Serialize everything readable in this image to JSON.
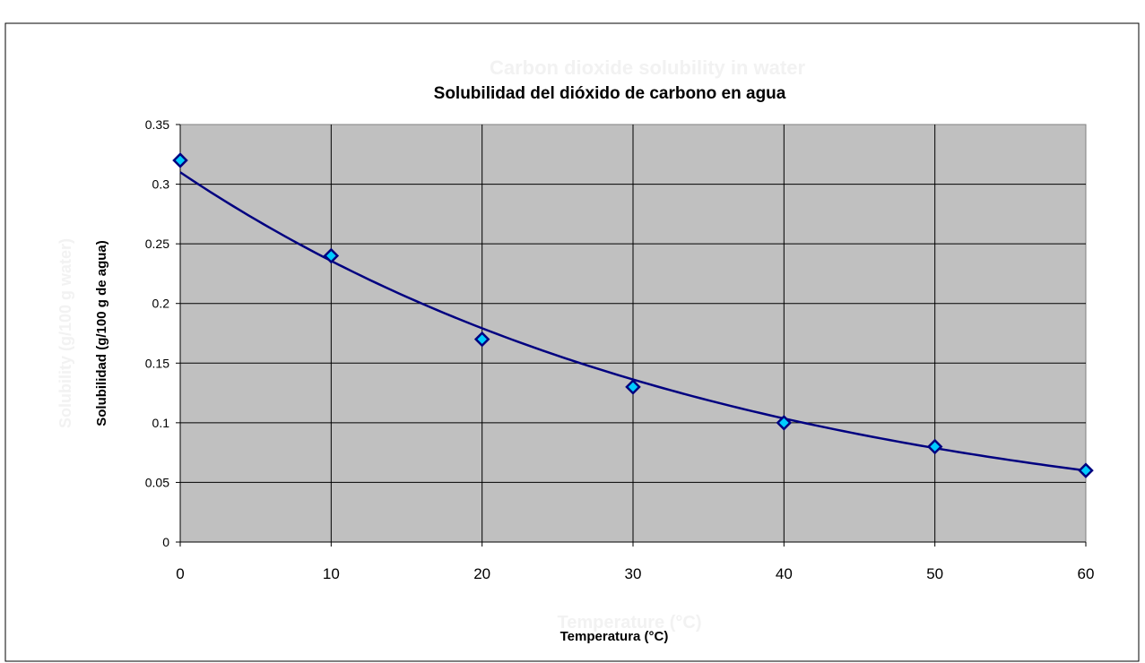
{
  "chart_data": {
    "type": "scatter",
    "title": "Solubilidad del dióxido de carbono en agua",
    "faded_title": "Carbon dioxide solubility in water",
    "xlabel": "Temperatura (°C)",
    "faded_xlabel": "Temperature (°C)",
    "ylabel": "Solubilidad (g/100 g de agua)",
    "faded_ylabel": "Solubility (g/100 g water)",
    "xlim": [
      0,
      60
    ],
    "ylim": [
      0,
      0.35
    ],
    "x_ticks": [
      "0",
      "10",
      "20",
      "30",
      "40",
      "50",
      "60"
    ],
    "y_ticks": [
      "0",
      "0.05",
      "0.1",
      "0.15",
      "0.2",
      "0.25",
      "0.3",
      "0.35"
    ],
    "grid": true,
    "legend": "none",
    "series": [
      {
        "x": [
          0,
          10,
          20,
          30,
          40,
          50,
          60
        ],
        "y": [
          0.32,
          0.24,
          0.17,
          0.13,
          0.1,
          0.08,
          0.06
        ],
        "marker": "diamond",
        "color": "#00ccff",
        "edge_color": "#000080"
      }
    ],
    "trendline": {
      "type": "exponential",
      "a": 0.31,
      "b": -0.0274,
      "color": "#000080"
    },
    "plot_background": "#c0c0c0"
  }
}
